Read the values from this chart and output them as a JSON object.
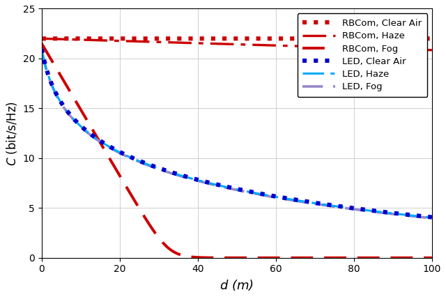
{
  "xlabel": "$d$ (m)",
  "ylabel": "$C$ (bit/s/Hz)",
  "xlim": [
    0,
    100
  ],
  "ylim": [
    0,
    25
  ],
  "xticks": [
    0,
    20,
    40,
    60,
    80,
    100
  ],
  "yticks": [
    0,
    5,
    10,
    15,
    20,
    25
  ],
  "red_color": "#cc0000",
  "blue_color": "#0000cc",
  "cyan_color": "#00aaff",
  "purple_color": "#9988cc",
  "linewidth": 2.2,
  "legend_labels": [
    "RBCom, Clear Air",
    "RBCom, Haze",
    "RBCom, Fog",
    "LED, Clear Air",
    "LED, Haze",
    "LED, Fog"
  ],
  "figsize": [
    6.4,
    4.26
  ],
  "dpi": 100,
  "rbcom_clear_value": 22.0,
  "rbcom_haze_start": 22.0,
  "rbcom_haze_end": 19.5,
  "rbcom_fog_start": 21.5,
  "rbcom_fog_cliff": 49.0,
  "led_start": 21.0,
  "led_decay_alpha": 0.35
}
